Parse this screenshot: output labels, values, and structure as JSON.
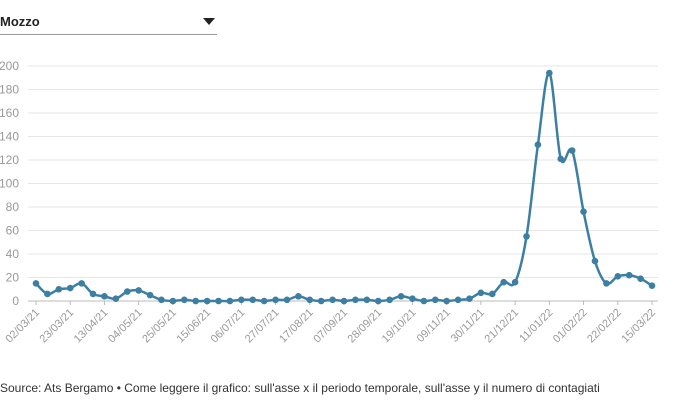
{
  "filter": {
    "selected": "Mozzo"
  },
  "footer": {
    "source": "Source: Ats Bergamo • Come leggere il grafico: sull'asse x il periodo temporale, sull'asse y il numero di contagiati"
  },
  "colors": {
    "line": "#3d7fa3",
    "grid": "#e6e6e6",
    "axis": "#bbbbbb",
    "tick_text": "#999999"
  },
  "chart_data": {
    "type": "line",
    "title": "",
    "xlabel": "",
    "ylabel": "",
    "ylim": [
      0,
      200
    ],
    "yticks": [
      0,
      20,
      40,
      60,
      80,
      100,
      120,
      140,
      160,
      180,
      200
    ],
    "xtick_labels": [
      "02/03/21",
      "23/03/21",
      "13/04/21",
      "04/05/21",
      "25/05/21",
      "15/06/21",
      "06/07/21",
      "27/07/21",
      "17/08/21",
      "07/09/21",
      "28/09/21",
      "19/10/21",
      "09/11/21",
      "30/11/21",
      "21/12/21",
      "11/01/22",
      "01/02/22",
      "22/02/22",
      "15/03/22"
    ],
    "grid": true,
    "series": [
      {
        "values": [
          15,
          6,
          10,
          11,
          15,
          6,
          4,
          2,
          8,
          9,
          5,
          1,
          0,
          1,
          0,
          0,
          0,
          0,
          1,
          1,
          0,
          1,
          1,
          4,
          1,
          0,
          1,
          0,
          1,
          1,
          0,
          1,
          4,
          2,
          0,
          1,
          0,
          1,
          2,
          7,
          6,
          16,
          16,
          55,
          133,
          194,
          121,
          128,
          76,
          34,
          15,
          21,
          22,
          19,
          13
        ]
      }
    ]
  }
}
